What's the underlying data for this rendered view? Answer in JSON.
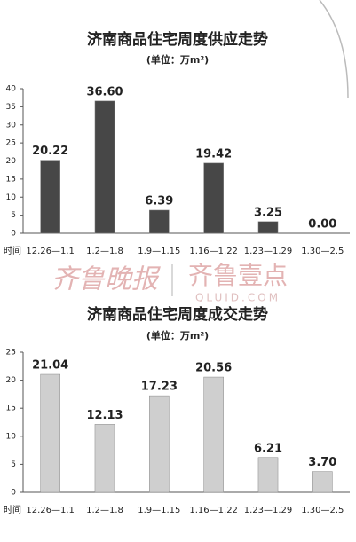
{
  "chart_data": [
    {
      "type": "bar",
      "title": "济南商品住宅周度供应走势",
      "subtitle": "(单位：万m²)",
      "x_label": "时间",
      "categories": [
        "12.26—1.1",
        "1.2—1.8",
        "1.9—1.15",
        "1.16—1.22",
        "1.23—1.29",
        "1.30—2.5"
      ],
      "values": [
        20.22,
        36.6,
        6.39,
        19.42,
        3.25,
        0
      ],
      "value_labels": [
        "20.22",
        "36.60",
        "6.39",
        "19.42",
        "3.25",
        "0.00"
      ],
      "color": "#474747",
      "ylim": [
        0,
        40
      ],
      "yticks": [
        0,
        5,
        10,
        15,
        20,
        25,
        30,
        35,
        40
      ]
    },
    {
      "type": "bar",
      "title": "济南商品住宅周度成交走势",
      "subtitle": "(单位：万m²)",
      "x_label": "时间",
      "categories": [
        "12.26—1.1",
        "1.2—1.8",
        "1.9—1.15",
        "1.16—1.22",
        "1.23—1.29",
        "1.30—2.5"
      ],
      "values": [
        21.04,
        12.13,
        17.23,
        20.56,
        6.21,
        3.7
      ],
      "value_labels": [
        "21.04",
        "12.13",
        "17.23",
        "20.56",
        "6.21",
        "3.70"
      ],
      "color": "#cfcfcf",
      "ylim": [
        0,
        25
      ],
      "yticks": [
        0,
        5,
        10,
        15,
        20,
        25
      ]
    }
  ],
  "watermark": {
    "left": "齐鲁晚报",
    "right": "齐鲁壹点",
    "url": "QLUID.COM"
  }
}
